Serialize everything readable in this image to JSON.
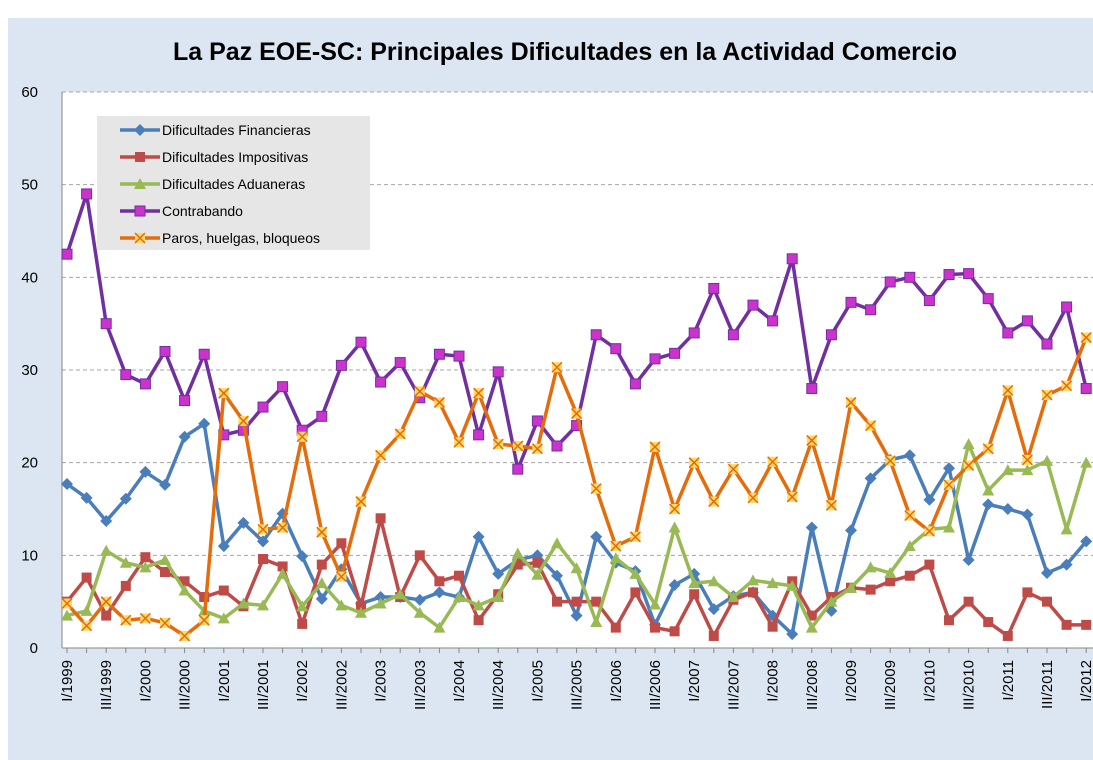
{
  "chart_data": {
    "type": "line",
    "title": "La Paz EOE-SC: Principales Dificultades en la Actividad Comercio",
    "categories": [
      "I/1999",
      null,
      "III/1999",
      null,
      "I/2000",
      null,
      "III/2000",
      null,
      "I/2001",
      null,
      "III/2001",
      null,
      "I/2002",
      null,
      "III/2002",
      null,
      "I/2003",
      null,
      "III/2003",
      null,
      "I/2004",
      null,
      "III/2004",
      null,
      "I/2005",
      null,
      "III/2005",
      null,
      "I/2006",
      null,
      "III/2006",
      null,
      "I/2007",
      null,
      "III/2007",
      null,
      "I/2008",
      null,
      "III/2008",
      null,
      "I/2009",
      null,
      "III/2009",
      null,
      "I/2010",
      null,
      "III/2010",
      null,
      "I/2011",
      null,
      "III/2011",
      null,
      "I/2012"
    ],
    "series": [
      {
        "name": "Dificultades Financieras",
        "color": "#4a7ebb",
        "values": [
          17.7,
          16.2,
          13.7,
          16.1,
          19,
          17.6,
          22.8,
          24.2,
          11,
          13.5,
          11.5,
          14.5,
          9.9,
          5.3,
          8.5,
          4.8,
          5.5,
          5.5,
          5.2,
          6,
          5.5,
          12,
          8,
          9.5,
          10,
          7.8,
          3.5,
          12,
          9.2,
          8.3,
          2.5,
          6.8,
          8,
          4.2,
          5.6,
          6,
          3.5,
          1.5,
          13,
          4,
          12.7,
          18.3,
          20.3,
          20.8,
          16,
          19.4,
          9.5,
          15.5,
          15,
          14.4,
          8.1,
          9,
          11.5
        ]
      },
      {
        "name": "Dificultades Impositivas",
        "color": "#be4b48",
        "values": [
          5,
          7.6,
          3.5,
          6.7,
          9.8,
          8.2,
          7.2,
          5.5,
          6.2,
          4.5,
          9.6,
          8.8,
          2.6,
          9,
          11.3,
          4.5,
          14,
          5.5,
          10,
          7.2,
          7.8,
          3,
          5.8,
          9,
          9.2,
          5,
          5,
          5,
          2.2,
          6,
          2.2,
          1.8,
          5.8,
          1.3,
          5.2,
          6,
          2.3,
          7.2,
          3.5,
          5.5,
          6.5,
          6.3,
          7.2,
          7.8,
          9,
          3,
          5,
          2.8,
          1.3,
          6,
          5,
          2.5,
          2.5
        ]
      },
      {
        "name": "Dificultades Aduaneras",
        "color": "#98b954",
        "values": [
          3.5,
          4,
          10.5,
          9.2,
          8.7,
          9.5,
          6.2,
          4,
          3.2,
          4.8,
          4.6,
          8,
          4.5,
          7,
          4.6,
          3.8,
          4.8,
          5.8,
          3.8,
          2.2,
          5.5,
          4.6,
          5.5,
          10.2,
          7.9,
          11.3,
          8.6,
          2.8,
          9.7,
          8,
          4.7,
          13,
          7,
          7.2,
          5.5,
          7.3,
          7,
          6.7,
          2.2,
          5,
          6.5,
          8.7,
          8.1,
          11,
          12.8,
          13,
          22,
          17,
          19.2,
          19.2,
          20.2,
          12.8,
          20
        ]
      },
      {
        "name": "Contrabando",
        "color": "#7030a0",
        "values": [
          42.5,
          49,
          35,
          29.5,
          28.5,
          32,
          26.7,
          31.7,
          23,
          23.5,
          26,
          28.2,
          23.5,
          25,
          30.5,
          33,
          28.7,
          30.8,
          27,
          31.7,
          31.5,
          23,
          29.8,
          19.3,
          24.5,
          21.8,
          24,
          33.8,
          32.3,
          28.5,
          31.2,
          31.8,
          34,
          38.8,
          33.8,
          37,
          35.3,
          42,
          28,
          33.8,
          37.3,
          36.5,
          39.5,
          40,
          37.5,
          40.3,
          40.4,
          37.7,
          34,
          35.3,
          32.8,
          36.8,
          28
        ]
      },
      {
        "name": "Paros,  huelgas,  bloqueos",
        "color": "#e46c0a",
        "values": [
          4.8,
          2.4,
          5,
          3,
          3.2,
          2.7,
          1.3,
          3,
          27.5,
          24.5,
          12.8,
          13,
          22.8,
          12.5,
          7.7,
          15.8,
          20.8,
          23.1,
          27.7,
          26.5,
          22.2,
          27.5,
          22,
          21.8,
          21.5,
          30.3,
          25.3,
          17.2,
          11,
          12,
          21.7,
          15,
          20,
          15.8,
          19.3,
          16.2,
          20.1,
          16.3,
          22.4,
          15.4,
          26.5,
          24,
          20.2,
          14.3,
          12.6,
          17.6,
          19.7,
          21.5,
          27.8,
          20.3,
          27.3,
          28.3,
          33.5
        ]
      }
    ],
    "ylim": [
      0,
      60
    ],
    "yticks": [
      0,
      10,
      20,
      30,
      40,
      50,
      60
    ],
    "grid": true
  }
}
